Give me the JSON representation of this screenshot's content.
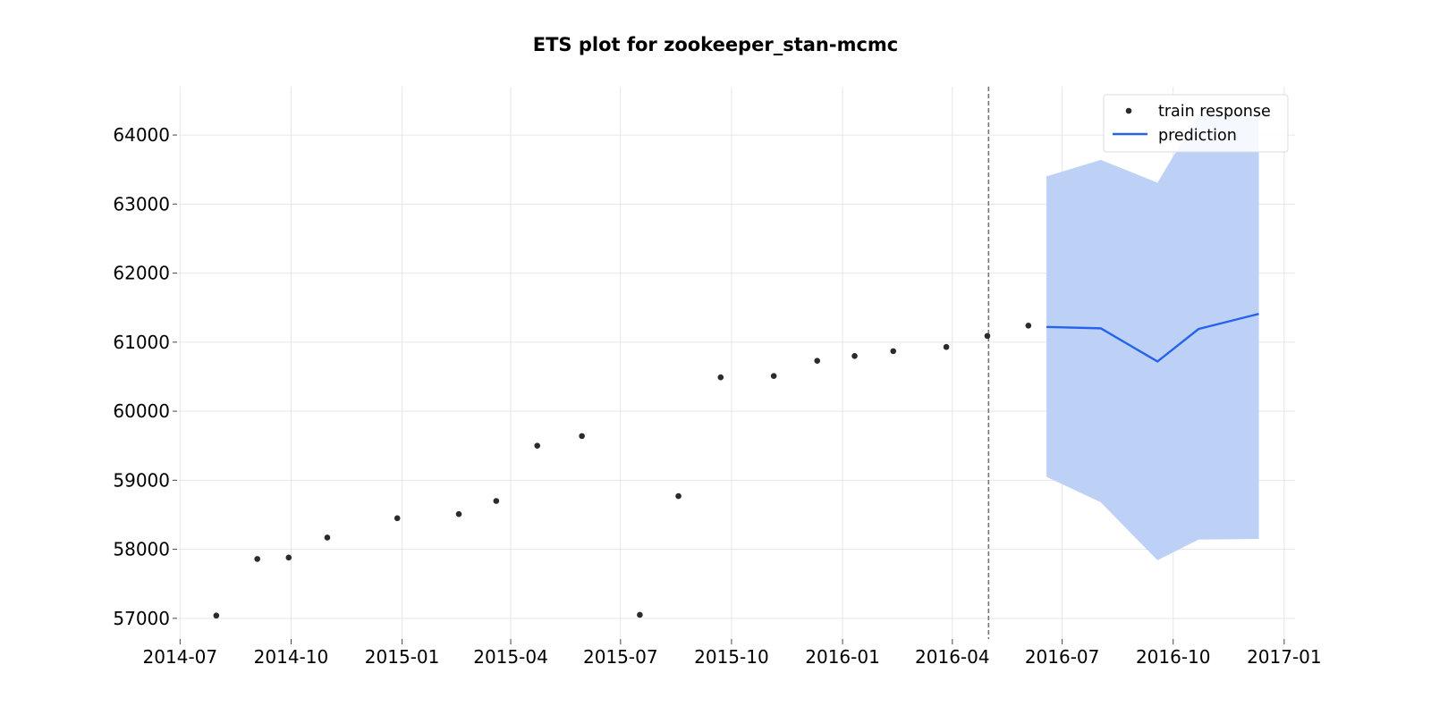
{
  "chart_data": {
    "type": "scatter",
    "title": "ETS plot for zookeeper_stan-mcmc",
    "xlabel": "",
    "ylabel": "",
    "x_ticks": [
      "2014-07",
      "2014-10",
      "2015-01",
      "2015-04",
      "2015-07",
      "2015-10",
      "2016-01",
      "2016-04",
      "2016-07",
      "2016-10",
      "2017-01"
    ],
    "y_ticks": [
      57000,
      58000,
      59000,
      60000,
      61000,
      62000,
      63000,
      64000
    ],
    "ylim": [
      56700,
      64700
    ],
    "xlim": [
      "2014-06-30",
      "2017-01-10"
    ],
    "grid": true,
    "legend_position": "top-right",
    "split_date": "2016-05-01",
    "series": [
      {
        "name": "train response",
        "kind": "scatter",
        "color": "#2b2b2b",
        "points": [
          {
            "x": "2014-07-31",
            "y": 57040
          },
          {
            "x": "2014-09-03",
            "y": 57860
          },
          {
            "x": "2014-09-29",
            "y": 57880
          },
          {
            "x": "2014-10-31",
            "y": 58170
          },
          {
            "x": "2014-12-28",
            "y": 58450
          },
          {
            "x": "2015-02-17",
            "y": 58510
          },
          {
            "x": "2015-03-20",
            "y": 58700
          },
          {
            "x": "2015-04-23",
            "y": 59500
          },
          {
            "x": "2015-05-30",
            "y": 59640
          },
          {
            "x": "2015-07-17",
            "y": 57050
          },
          {
            "x": "2015-08-18",
            "y": 58770
          },
          {
            "x": "2015-09-22",
            "y": 60490
          },
          {
            "x": "2015-11-05",
            "y": 60510
          },
          {
            "x": "2015-12-11",
            "y": 60730
          },
          {
            "x": "2016-01-11",
            "y": 60800
          },
          {
            "x": "2016-02-12",
            "y": 60870
          },
          {
            "x": "2016-03-27",
            "y": 60930
          },
          {
            "x": "2016-04-30",
            "y": 61090
          },
          {
            "x": "2016-06-03",
            "y": 61240
          }
        ]
      },
      {
        "name": "prediction",
        "kind": "line",
        "color": "#2563eb",
        "band_color": "#bdd1f7",
        "points": [
          {
            "x": "2016-06-18",
            "y": 61220,
            "lower": 59050,
            "upper": 63400
          },
          {
            "x": "2016-08-02",
            "y": 61200,
            "lower": 58680,
            "upper": 63640
          },
          {
            "x": "2016-09-18",
            "y": 60720,
            "lower": 57840,
            "upper": 63310
          },
          {
            "x": "2016-10-22",
            "y": 61190,
            "lower": 58140,
            "upper": 64300
          },
          {
            "x": "2016-12-11",
            "y": 61410,
            "lower": 58150,
            "upper": 64300
          }
        ]
      }
    ]
  }
}
